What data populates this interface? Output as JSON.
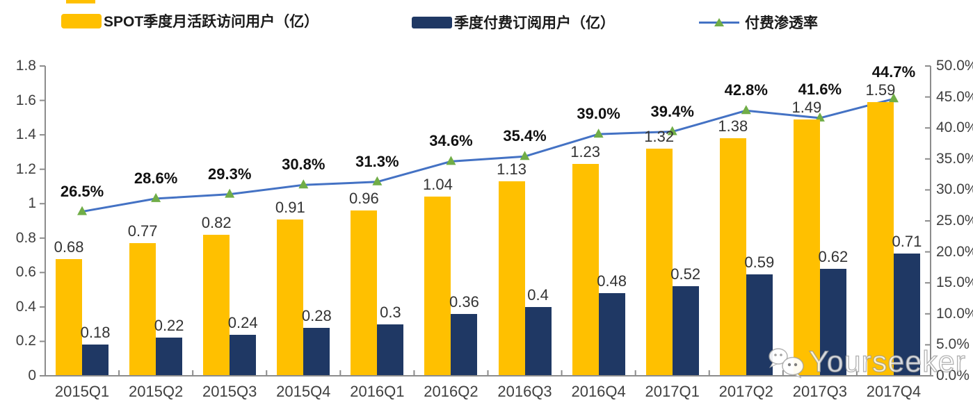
{
  "legend": {
    "items": [
      {
        "label": "SPOT季度月活跃访问用户（亿）"
      },
      {
        "label": "季度付费订阅用户（亿）"
      },
      {
        "label": "付费渗透率"
      }
    ]
  },
  "colors": {
    "mau": "#FFC000",
    "subs": "#1F3864",
    "line": "#4472C4",
    "marker": "#70AD47",
    "axis": "#8C8C8C"
  },
  "chart_data": {
    "type": "combo-bar-line",
    "title": "",
    "legend_position": "top",
    "grid": false,
    "categories": [
      "2015Q1",
      "2015Q2",
      "2015Q3",
      "2015Q4",
      "2016Q1",
      "2016Q2",
      "2016Q3",
      "2016Q4",
      "2017Q1",
      "2017Q2",
      "2017Q3",
      "2017Q4"
    ],
    "series": [
      {
        "name": "SPOT季度月活跃访问用户（亿）",
        "type": "bar",
        "axis": "left",
        "color": "#FFC000",
        "values": [
          0.68,
          0.77,
          0.82,
          0.91,
          0.96,
          1.04,
          1.13,
          1.23,
          1.32,
          1.38,
          1.49,
          1.59
        ],
        "labels": [
          "0.68",
          "0.77",
          "0.82",
          "0.91",
          "0.96",
          "1.04",
          "1.13",
          "1.23",
          "1.32",
          "1.38",
          "1.49",
          "1.59"
        ]
      },
      {
        "name": "季度付费订阅用户（亿）",
        "type": "bar",
        "axis": "left",
        "color": "#1F3864",
        "values": [
          0.18,
          0.22,
          0.24,
          0.28,
          0.3,
          0.36,
          0.4,
          0.48,
          0.52,
          0.59,
          0.62,
          0.71
        ],
        "labels": [
          "0.18",
          "0.22",
          "0.24",
          "0.28",
          "0.3",
          "0.36",
          "0.4",
          "0.48",
          "0.52",
          "0.59",
          "0.62",
          "0.71"
        ]
      },
      {
        "name": "付费渗透率",
        "type": "line",
        "axis": "right",
        "color": "#4472C4",
        "marker": "triangle-up",
        "marker_color": "#70AD47",
        "values": [
          26.5,
          28.6,
          29.3,
          30.8,
          31.3,
          34.6,
          35.4,
          39.0,
          39.4,
          42.8,
          41.6,
          44.7
        ],
        "labels": [
          "26.5%",
          "28.6%",
          "29.3%",
          "30.8%",
          "31.3%",
          "34.6%",
          "35.4%",
          "39.0%",
          "39.4%",
          "42.8%",
          "41.6%",
          "44.7%"
        ]
      }
    ],
    "left_axis": {
      "min": 0,
      "max": 1.8,
      "tick_labels": [
        "0",
        "0.2",
        "0.4",
        "0.6",
        "0.8",
        "1",
        "1.2",
        "1.4",
        "1.6",
        "1.8"
      ]
    },
    "right_axis": {
      "min": 0,
      "max": 50,
      "tick_labels": [
        "0.0%",
        "5.0%",
        "10.0%",
        "15.0%",
        "20.0%",
        "25.0%",
        "30.0%",
        "35.0%",
        "40.0%",
        "45.0%",
        "50.0%"
      ]
    }
  },
  "watermark": {
    "text": "Yourseeker",
    "icon": "wechat-icon"
  }
}
